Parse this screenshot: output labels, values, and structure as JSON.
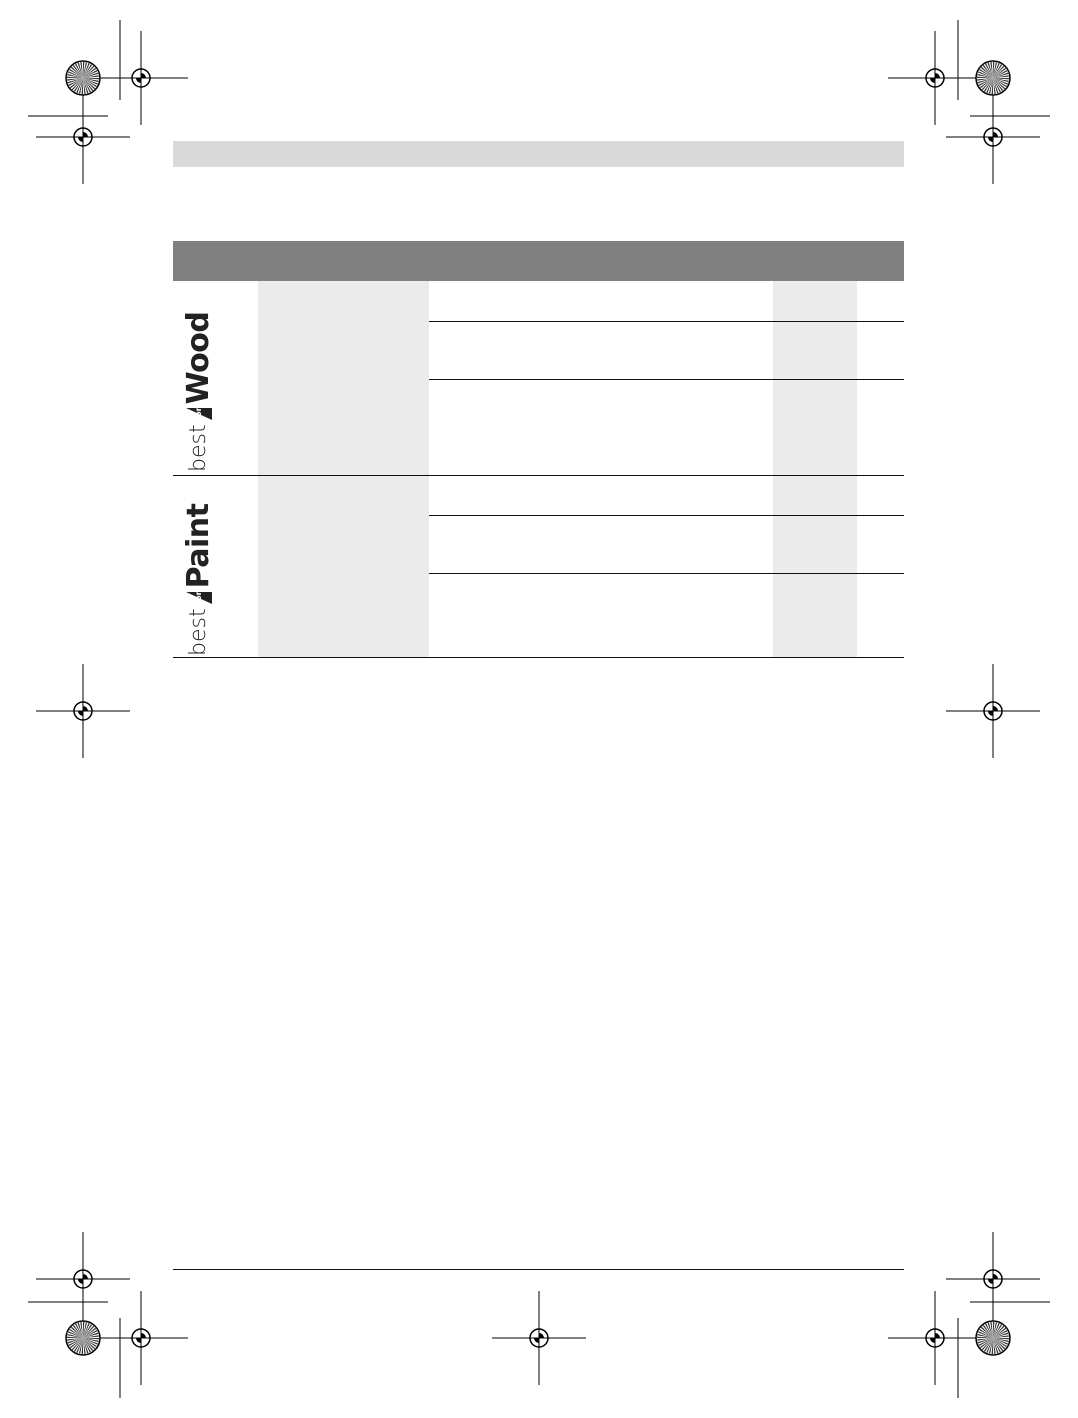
{
  "logos": [
    {
      "best": "best",
      "for": "for",
      "word": "Wood"
    },
    {
      "best": "best",
      "for": "for",
      "word": "Paint"
    }
  ],
  "colors": {
    "header": "#808080",
    "top_bar": "#d9d9d9",
    "shaded_column": "#ebebeb"
  }
}
